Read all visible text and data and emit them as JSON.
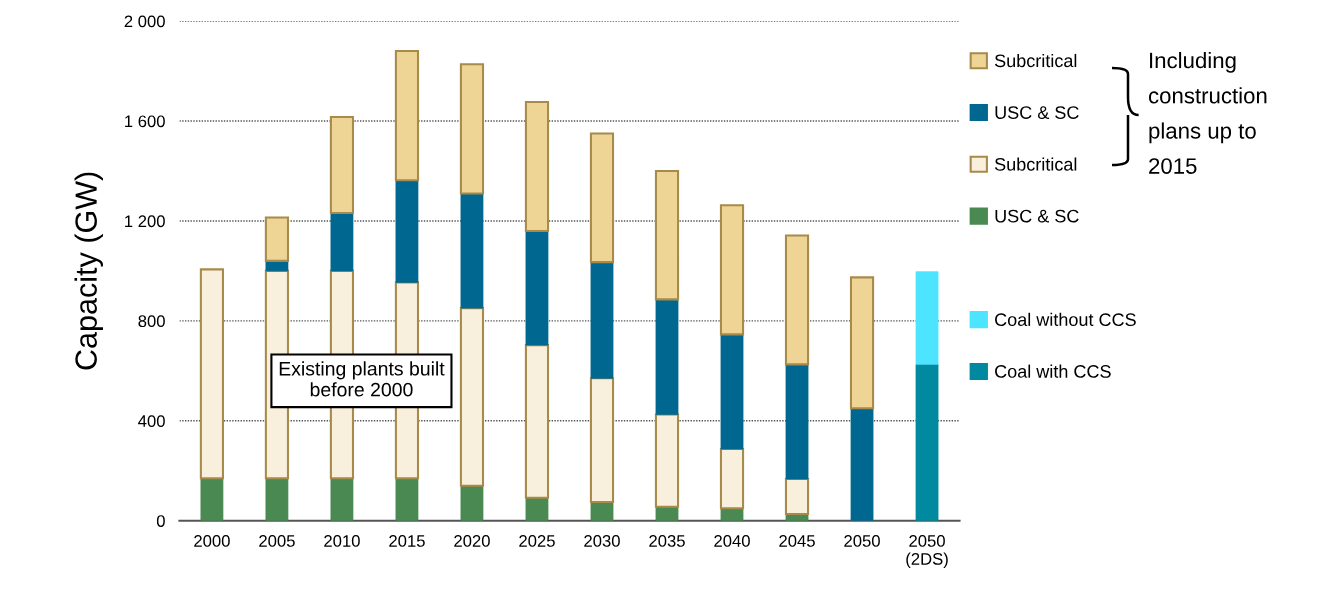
{
  "chart_data": {
    "type": "bar",
    "stacked": true,
    "ylabel": "Capacity (GW)",
    "categories": [
      "2000",
      "2005",
      "2010",
      "2015",
      "2020",
      "2025",
      "2030",
      "2035",
      "2040",
      "2045",
      "2050",
      "2050\n(2DS)"
    ],
    "series": [
      {
        "name": "USC & SC",
        "color": "#4a8a52",
        "values": [
          170,
          170,
          170,
          170,
          140,
          92,
          75,
          56,
          50,
          27,
          null,
          null
        ]
      },
      {
        "name": "Subcritical",
        "color": "#f8efdc",
        "values": [
          836,
          830,
          830,
          784,
          711,
          611,
          495,
          369,
          237,
          140,
          null,
          null
        ]
      },
      {
        "name": "USC & SC",
        "color": "#006890",
        "values": [
          null,
          40,
          232,
          409,
          459,
          457,
          465,
          461,
          459,
          459,
          450,
          null
        ]
      },
      {
        "name": "Subcritical",
        "color": "#eed596",
        "values": [
          null,
          174,
          384,
          517,
          517,
          516,
          515,
          514,
          517,
          516,
          524,
          null
        ]
      },
      {
        "name": "Coal with CCS",
        "color": "#00899f",
        "values": [
          null,
          null,
          null,
          null,
          null,
          null,
          null,
          null,
          null,
          null,
          null,
          626
        ]
      },
      {
        "name": "Coal without CCS",
        "color": "#4de4ff",
        "values": [
          null,
          null,
          null,
          null,
          null,
          null,
          null,
          null,
          null,
          null,
          null,
          371
        ]
      }
    ],
    "ylim": [
      0,
      2000
    ],
    "yticks": [
      {
        "value": 0,
        "label": "0"
      },
      {
        "value": 400,
        "label": "400"
      },
      {
        "value": 800,
        "label": "800"
      },
      {
        "value": 1200,
        "label": "1 200"
      },
      {
        "value": 1600,
        "label": "1 600"
      },
      {
        "value": 2000,
        "label": "2 000"
      }
    ],
    "grid": "y",
    "legend": "right",
    "annotations": [
      "Existing plants built\nbefore 2000",
      "Including\nconstruction\nplans up to\n2015"
    ]
  }
}
